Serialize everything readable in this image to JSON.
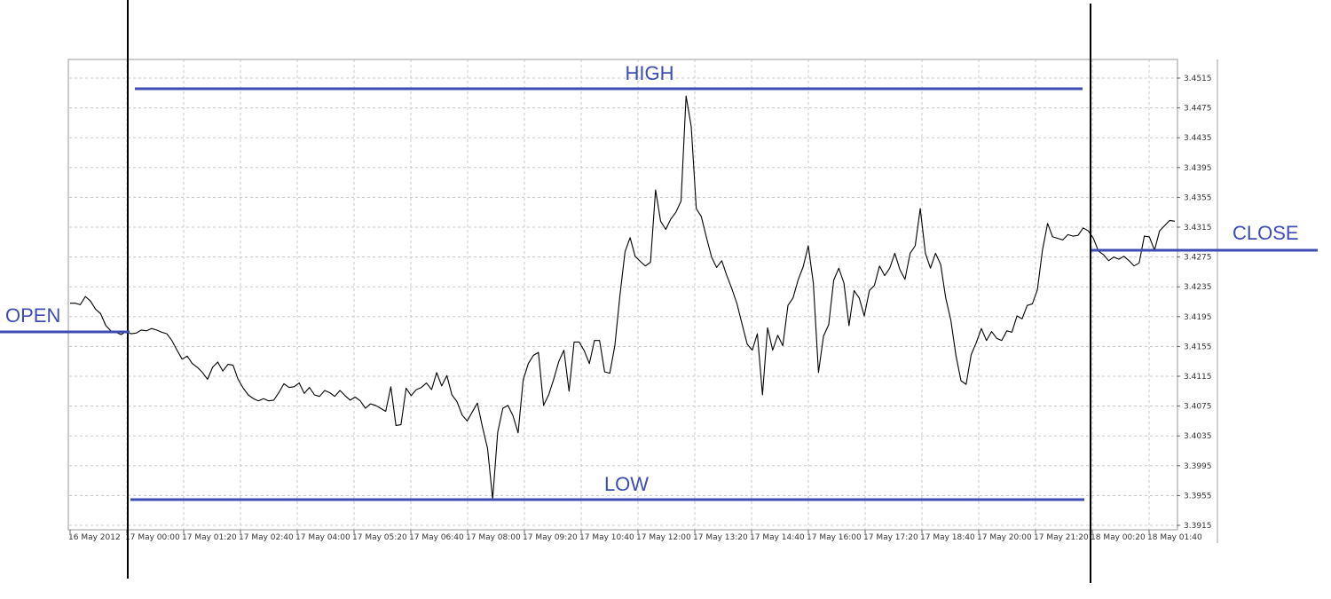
{
  "colors": {
    "annotation": "#3c4cb4",
    "price_line": "#000000",
    "grid": "#c8c8c8",
    "frame": "#9a9a9a"
  },
  "chart_data": {
    "type": "line",
    "title": "",
    "xlabel": "",
    "ylabel": "",
    "grid": true,
    "ylim": [
      3.3895,
      3.4535
    ],
    "y_ticks": [
      "3.4515",
      "3.4475",
      "3.4435",
      "3.4395",
      "3.4355",
      "3.4315",
      "3.4275",
      "3.4235",
      "3.4195",
      "3.4155",
      "3.4115",
      "3.4075",
      "3.4035",
      "3.3995",
      "3.3955",
      "3.3915"
    ],
    "x_ticks": [
      "16 May 2012",
      "17 May 00:00",
      "17 May 01:20",
      "17 May 02:40",
      "17 May 04:00",
      "17 May 05:20",
      "17 May 06:40",
      "17 May 08:00",
      "17 May 09:20",
      "17 May 10:40",
      "17 May 12:00",
      "17 May 13:20",
      "17 May 14:40",
      "17 May 16:00",
      "17 May 17:20",
      "17 May 18:40",
      "17 May 20:00",
      "17 May 21:20",
      "18 May 00:20",
      "18 May 01:40"
    ],
    "series": [
      {
        "values": [
          3.4213,
          3.4213,
          3.4211,
          3.4222,
          3.4216,
          3.4205,
          3.4199,
          3.4183,
          3.4176,
          3.4174,
          3.4171,
          3.4175,
          3.4172,
          3.4173,
          3.4177,
          3.4176,
          3.4179,
          3.4177,
          3.4174,
          3.4172,
          3.4163,
          3.415,
          3.4138,
          3.4142,
          3.4132,
          3.4127,
          3.412,
          3.4111,
          3.4127,
          3.4134,
          3.4122,
          3.4131,
          3.413,
          3.4111,
          3.4099,
          3.409,
          3.4085,
          3.4082,
          3.4085,
          3.4082,
          3.4083,
          3.4093,
          3.4105,
          3.41,
          3.4101,
          3.4106,
          3.4092,
          3.41,
          3.409,
          3.4088,
          3.4096,
          3.4093,
          3.4088,
          3.4096,
          3.4089,
          3.4083,
          3.4087,
          3.4082,
          3.4072,
          3.4078,
          3.4076,
          3.4072,
          3.4068,
          3.4101,
          3.4049,
          3.405,
          3.4099,
          3.4089,
          3.4097,
          3.41,
          3.4106,
          3.4097,
          3.412,
          3.4102,
          3.4116,
          3.409,
          3.4081,
          3.4063,
          3.4055,
          3.4067,
          3.4079,
          3.4047,
          3.4018,
          3.395,
          3.404,
          3.4072,
          3.4076,
          3.4062,
          3.4039,
          3.411,
          3.4132,
          3.4143,
          3.4147,
          3.4076,
          3.409,
          3.4111,
          3.4135,
          3.415,
          3.4095,
          3.4161,
          3.4161,
          3.4149,
          3.4132,
          3.4163,
          3.4163,
          3.4121,
          3.4119,
          3.4156,
          3.4223,
          3.4282,
          3.4301,
          3.4276,
          3.4269,
          3.4263,
          3.4268,
          3.4365,
          3.4323,
          3.4312,
          3.4326,
          3.4335,
          3.435,
          3.4491,
          3.445,
          3.434,
          3.4329,
          3.4301,
          3.4275,
          3.4261,
          3.427,
          3.425,
          3.4232,
          3.4212,
          3.4185,
          3.4158,
          3.415,
          3.4172,
          3.409,
          3.418,
          3.415,
          3.417,
          3.4156,
          3.421,
          3.422,
          3.4244,
          3.4262,
          3.429,
          3.424,
          3.412,
          3.4169,
          3.4184,
          3.4244,
          3.426,
          3.424,
          3.4183,
          3.423,
          3.422,
          3.4196,
          3.423,
          3.4237,
          3.4263,
          3.425,
          3.426,
          3.428,
          3.4258,
          3.4245,
          3.428,
          3.429,
          3.434,
          3.428,
          3.426,
          3.428,
          3.4265,
          3.422,
          3.419,
          3.4143,
          3.4109,
          3.4104,
          3.4144,
          3.416,
          3.4179,
          3.4163,
          3.4175,
          3.4166,
          3.4163,
          3.4176,
          3.4174,
          3.4196,
          3.4192,
          3.421,
          3.4212,
          3.4231,
          3.4284,
          3.432,
          3.4302,
          3.43,
          3.4298,
          3.4305,
          3.4303,
          3.4304,
          3.4314,
          3.431,
          3.43,
          3.4283,
          3.4278,
          3.427,
          3.4275,
          3.4272,
          3.4276,
          3.427,
          3.4263,
          3.4267,
          3.4303,
          3.4302,
          3.4284,
          3.431,
          3.4317,
          3.4324,
          3.4323
        ]
      }
    ]
  },
  "annotations": {
    "high": "HIGH",
    "low": "LOW",
    "open": "OPEN",
    "close": "CLOSE"
  }
}
